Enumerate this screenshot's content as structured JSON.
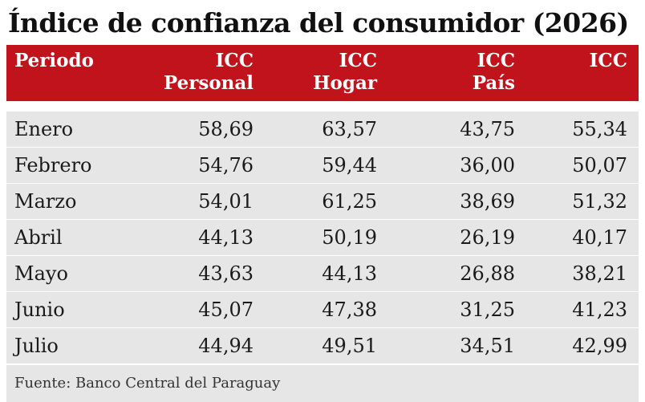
{
  "chart_data": {
    "type": "table",
    "title": "Índice de confianza del consumidor (2026)",
    "columns": [
      {
        "line1": "Periodo",
        "line2": ""
      },
      {
        "line1": "ICC",
        "line2": "Personal"
      },
      {
        "line1": "ICC",
        "line2": "Hogar"
      },
      {
        "line1": "ICC",
        "line2": "País"
      },
      {
        "line1": "ICC",
        "line2": ""
      }
    ],
    "rows": [
      [
        "Enero",
        "58,69",
        "63,57",
        "43,75",
        "55,34"
      ],
      [
        "Febrero",
        "54,76",
        "59,44",
        "36,00",
        "50,07"
      ],
      [
        "Marzo",
        "54,01",
        "61,25",
        "38,69",
        "51,32"
      ],
      [
        "Abril",
        "44,13",
        "50,19",
        "26,19",
        "40,17"
      ],
      [
        "Mayo",
        "43,63",
        "44,13",
        "26,88",
        "38,21"
      ],
      [
        "Junio",
        "45,07",
        "47,38",
        "31,25",
        "41,23"
      ],
      [
        "Julio",
        "44,94",
        "49,51",
        "34,51",
        "42,99"
      ]
    ],
    "source": "Fuente: Banco Central del Paraguay",
    "header_color": "#c1131b",
    "row_color": "#e6e6e6"
  }
}
